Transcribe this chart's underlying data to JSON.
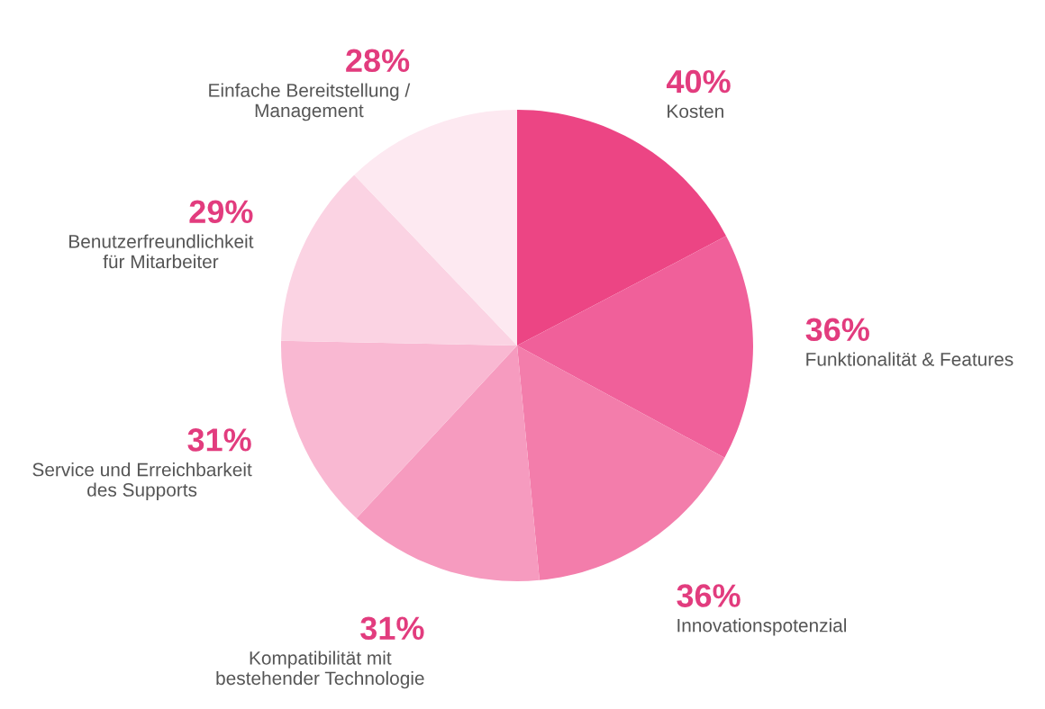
{
  "chart_data": {
    "type": "pie",
    "categories": [
      "Kosten",
      "Funktionalität & Features",
      "Innovationspotenzial",
      "Kompatibilität mit\nbestehender Technologie",
      "Service und Erreichbarkeit\ndes Supports",
      "Benutzerfreundlichkeit\nfür Mitarbeiter",
      "Einfache Bereitstellung /\nManagement"
    ],
    "values": [
      40,
      36,
      36,
      31,
      31,
      29,
      28
    ],
    "value_labels": [
      "40%",
      "36%",
      "36%",
      "31%",
      "31%",
      "29%",
      "28%"
    ],
    "colors": [
      "#ec4584",
      "#f0609a",
      "#f37dab",
      "#f69bbf",
      "#f9b8d2",
      "#fbd3e3",
      "#fde9f1"
    ]
  }
}
